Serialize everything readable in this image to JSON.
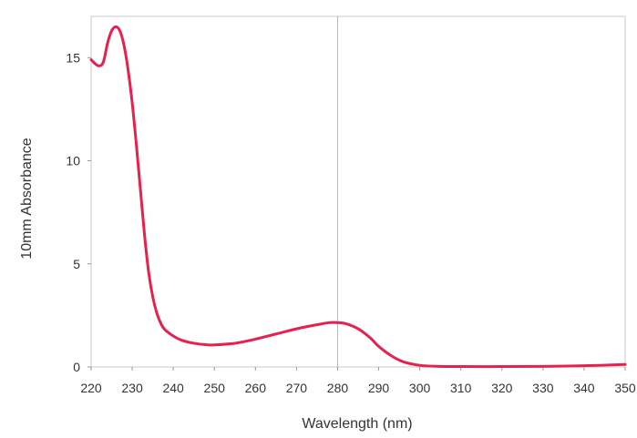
{
  "chart_data": {
    "type": "line",
    "title": "",
    "xlabel": "Wavelength (nm)",
    "ylabel": "10mm Absorbance",
    "xlim": [
      220,
      350
    ],
    "ylim": [
      0,
      17
    ],
    "x_ticks": [
      "220",
      "230",
      "240",
      "250",
      "260",
      "270",
      "280",
      "290",
      "300",
      "310",
      "320",
      "330",
      "340",
      "350"
    ],
    "y_ticks": [
      "0",
      "5",
      "10",
      "15"
    ],
    "x_tick_values": [
      220,
      230,
      240,
      250,
      260,
      270,
      280,
      290,
      300,
      310,
      320,
      330,
      340,
      350
    ],
    "y_tick_values": [
      0,
      5,
      10,
      15
    ],
    "reference_line_x": 280,
    "grid": false,
    "colors": {
      "series": "#e8204e",
      "frame": "#c8c8c8",
      "reference_line": "#b8b8b8"
    },
    "series": [
      {
        "x": [
          220,
          221,
          222,
          223,
          224,
          225,
          226,
          227,
          228,
          229,
          230,
          231,
          232,
          233,
          234,
          235,
          236,
          237,
          238,
          240,
          242,
          245,
          248,
          250,
          255,
          260,
          265,
          270,
          275,
          278,
          280,
          282,
          285,
          288,
          290,
          293,
          296,
          300,
          305,
          310,
          320,
          330,
          340,
          350
        ],
        "y": [
          14.9,
          14.7,
          14.6,
          14.8,
          15.7,
          16.3,
          16.5,
          16.3,
          15.6,
          14.4,
          12.8,
          10.8,
          8.6,
          6.4,
          4.6,
          3.4,
          2.6,
          2.1,
          1.8,
          1.5,
          1.3,
          1.15,
          1.08,
          1.07,
          1.15,
          1.35,
          1.6,
          1.85,
          2.05,
          2.15,
          2.15,
          2.1,
          1.85,
          1.4,
          1.0,
          0.55,
          0.25,
          0.08,
          0.03,
          0.02,
          0.02,
          0.03,
          0.06,
          0.12
        ]
      }
    ]
  }
}
